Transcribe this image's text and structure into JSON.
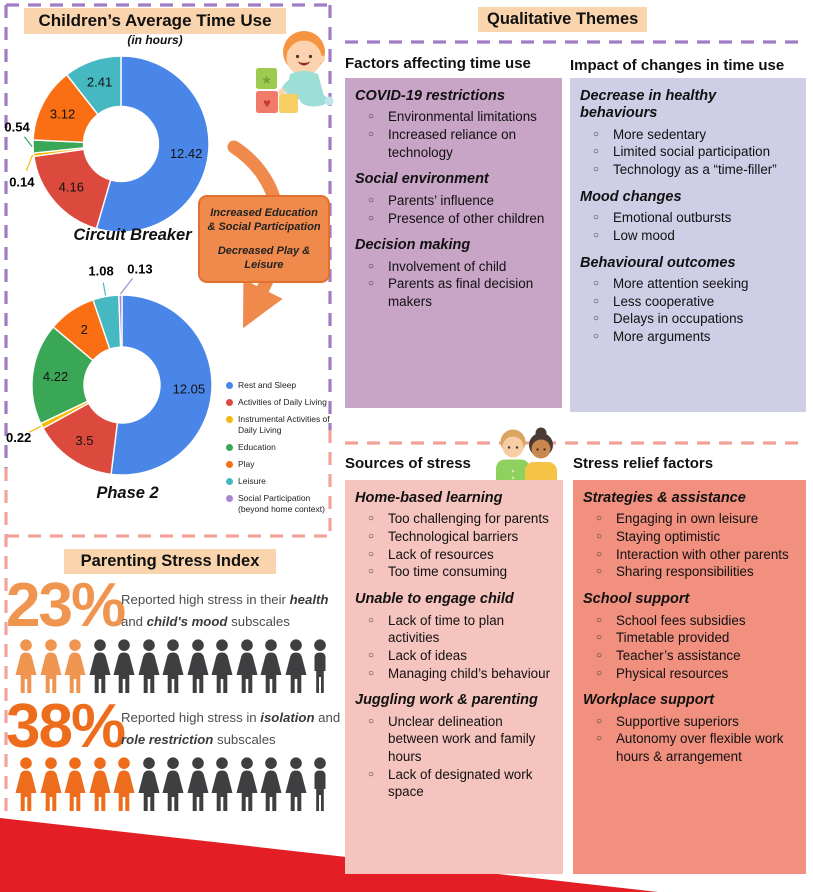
{
  "colors": {
    "peach_highlight": "#FAD4AC",
    "purple_dash": "#A07CC5",
    "pink_dash": "#F0A29B",
    "mauve_box": "#C8A4C6",
    "lavender_box": "#CFCEE7",
    "pink_box": "#F6C4BE",
    "salmon_box": "#F1907F",
    "arrow_orange": "#EF8A4C",
    "red_banner": "#E31E25",
    "stat1_orange": "#F0954F",
    "stat2_orange": "#EE6D1C",
    "icon_dark": "#3F3F41"
  },
  "time_use": {
    "title": "Children’s Average Time Use",
    "subtitle": "(in hours)",
    "arrow_note": {
      "line1": "Increased Education & Social Participation",
      "line2": "Decreased Play & Leisure"
    }
  },
  "chart_data": [
    {
      "type": "donut",
      "title": "Circuit Breaker",
      "unit": "hours",
      "categories": [
        "Rest and Sleep",
        "Activities of Daily Living",
        "Instrumental Activities of Daily Living",
        "Education",
        "Play",
        "Leisure"
      ],
      "values": [
        12.42,
        4.16,
        0.14,
        0.54,
        3.12,
        2.41
      ],
      "labels": [
        "12.42",
        "4.16",
        "0.14",
        "0.54",
        "3.12",
        "2.41"
      ],
      "colors": [
        "#4A86E8",
        "#DC4A3D",
        "#F5B90B",
        "#3AA757",
        "#FA6E14",
        "#45B8C1"
      ],
      "legend_position": "none"
    },
    {
      "type": "donut",
      "title": "Phase 2",
      "unit": "hours",
      "categories": [
        "Rest and Sleep",
        "Activities of Daily Living",
        "Instrumental Activities of Daily Living",
        "Education",
        "Play",
        "Leisure",
        "Social Participation (beyond home context)"
      ],
      "values": [
        12.05,
        3.5,
        0.22,
        4.22,
        2,
        1.08,
        0.13
      ],
      "labels": [
        "12.05",
        "3.5",
        "0.22",
        "4.22",
        "2",
        "1.08",
        "0.13"
      ],
      "colors": [
        "#4A86E8",
        "#DC4A3D",
        "#F5B90B",
        "#3AA757",
        "#FA6E14",
        "#45B8C1",
        "#A985D1"
      ],
      "legend_position": "right"
    }
  ],
  "legend": {
    "items": [
      {
        "label": "Rest and Sleep",
        "color": "#4A86E8"
      },
      {
        "label": "Activities of Daily Living",
        "color": "#DC4A3D"
      },
      {
        "label": "Instrumental Activities of Daily Living",
        "color": "#F5B90B"
      },
      {
        "label": "Education",
        "color": "#3AA757"
      },
      {
        "label": "Play",
        "color": "#FA6E14"
      },
      {
        "label": "Leisure",
        "color": "#45B8C1"
      },
      {
        "label": "Social Participation (beyond home context)",
        "color": "#A985D1"
      }
    ]
  },
  "qualitative": {
    "title": "Qualitative Themes",
    "left": {
      "heading": "Factors affecting time use",
      "groups": [
        {
          "title": "COVID-19 restrictions",
          "items": [
            "Environmental limitations",
            "Increased reliance on technology"
          ]
        },
        {
          "title": "Social environment",
          "items": [
            "Parents’ influence",
            "Presence of other children"
          ]
        },
        {
          "title": "Decision making",
          "items": [
            "Involvement of child",
            "Parents as final decision makers"
          ]
        }
      ]
    },
    "right": {
      "heading": "Impact of changes in time use",
      "groups": [
        {
          "title": "Decrease in healthy behaviours",
          "items": [
            "More sedentary",
            "Limited social participation",
            "Technology as a “time-filler”"
          ]
        },
        {
          "title": "Mood changes",
          "items": [
            "Emotional outbursts",
            "Low mood"
          ]
        },
        {
          "title": "Behavioural outcomes",
          "items": [
            "More attention seeking",
            "Less cooperative",
            "Delays in occupations",
            "More arguments"
          ]
        }
      ]
    }
  },
  "stress_index": {
    "title": "Parenting Stress Index",
    "stats": [
      {
        "value": "23%",
        "parts": [
          {
            "t": "Reported high stress in their "
          },
          {
            "t": "health",
            "em": true
          },
          {
            "t": " and "
          },
          {
            "t": "child's mood",
            "em": true
          },
          {
            "t": " subscales"
          }
        ],
        "highlighted": 3,
        "total": 13,
        "color": "#F0954F"
      },
      {
        "value": "38%",
        "parts": [
          {
            "t": "Reported high stress in "
          },
          {
            "t": "isolation",
            "em": true
          },
          {
            "t": " and "
          },
          {
            "t": "role restriction",
            "em": true
          },
          {
            "t": " subscales"
          }
        ],
        "highlighted": 5,
        "total": 13,
        "color": "#EE6D1C"
      }
    ]
  },
  "stress_themes": {
    "sources": {
      "heading": "Sources of stress",
      "groups": [
        {
          "title": "Home-based learning",
          "items": [
            "Too challenging for parents",
            "Technological barriers",
            "Lack of resources",
            "Too time consuming"
          ]
        },
        {
          "title": "Unable to engage child",
          "items": [
            "Lack of time to plan activities",
            "Lack of ideas",
            "Managing child’s behaviour"
          ]
        },
        {
          "title": "Juggling work & parenting",
          "items": [
            "Unclear delineation between work and family hours",
            "Lack of designated work space"
          ]
        }
      ]
    },
    "relief": {
      "heading": "Stress relief factors",
      "groups": [
        {
          "title": "Strategies & assistance",
          "items": [
            "Engaging in own leisure",
            "Staying optimistic",
            "Interaction with other parents",
            "Sharing responsibilities"
          ]
        },
        {
          "title": "School support",
          "items": [
            "School fees subsidies",
            "Timetable provided",
            "Teacher’s assistance",
            "Physical resources"
          ]
        },
        {
          "title": "Workplace support",
          "items": [
            "Supportive superiors",
            "Autonomy over flexible work hours & arrangement"
          ]
        }
      ]
    }
  }
}
